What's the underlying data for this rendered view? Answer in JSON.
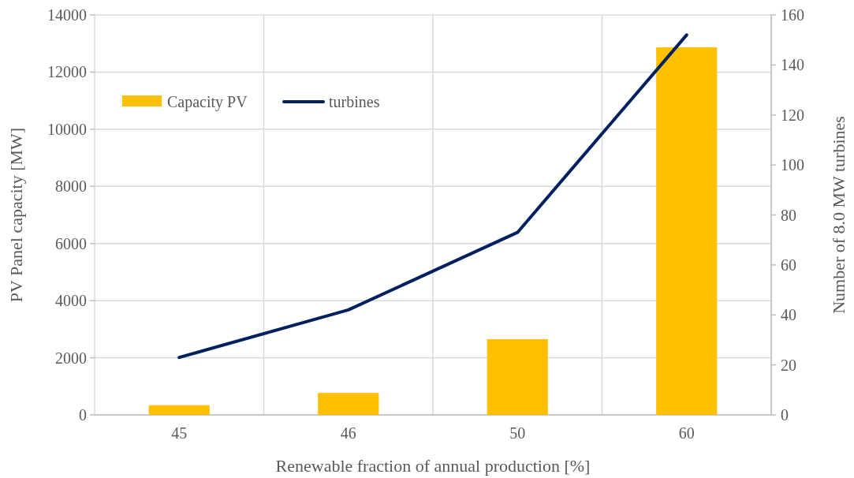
{
  "chart_data": {
    "type": "bar",
    "xlabel": "Renewable fraction of annual production [%]",
    "ylabel": "PV Panel capacity [MW]",
    "y2label": "Number of 8.0 MW turbines",
    "categories": [
      "45",
      "46",
      "50",
      "60"
    ],
    "series": [
      {
        "name": "Capacity PV",
        "color": "#ffc000",
        "values": [
          340,
          770,
          2650,
          12870
        ]
      },
      {
        "name": "turbines",
        "type": "line",
        "axis": "y2",
        "color": "#002060",
        "values": [
          23,
          42,
          73,
          152
        ]
      }
    ],
    "ylim": [
      0,
      14000
    ],
    "yticks": [
      0,
      2000,
      4000,
      6000,
      8000,
      10000,
      12000,
      14000
    ],
    "y2lim": [
      0,
      160
    ],
    "y2ticks": [
      0,
      20,
      40,
      60,
      80,
      100,
      120,
      140,
      160
    ],
    "grid": true,
    "legend": "top left"
  }
}
